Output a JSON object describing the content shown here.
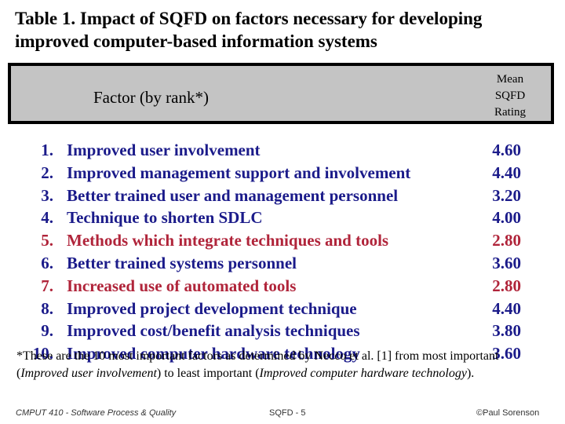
{
  "title": "Table 1.  Impact of SQFD on factors necessary for developing improved computer-based information systems",
  "header": {
    "factor": "Factor (by rank*)",
    "mean_line1": "Mean",
    "mean_line2": "SQFD",
    "mean_line3": "Rating"
  },
  "factors": [
    {
      "rank": "1.",
      "label": "Improved user involvement",
      "rating": "4.60",
      "color": "#1b1b8a"
    },
    {
      "rank": "2.",
      "label": "Improved management support and involvement",
      "rating": "4.40",
      "color": "#1b1b8a"
    },
    {
      "rank": "3.",
      "label": "Better trained user and management personnel",
      "rating": "3.20",
      "color": "#1b1b8a"
    },
    {
      "rank": "4.",
      "label": "Technique to shorten SDLC",
      "rating": "4.00",
      "color": "#1b1b8a"
    },
    {
      "rank": "5.",
      "label": "Methods which integrate techniques and tools",
      "rating": "2.80",
      "color": "#b0243a"
    },
    {
      "rank": "6.",
      "label": "Better trained systems personnel",
      "rating": "3.60",
      "color": "#1b1b8a"
    },
    {
      "rank": "7.",
      "label": "Increased use of automated tools",
      "rating": "2.80",
      "color": "#b0243a"
    },
    {
      "rank": "8.",
      "label": "Improved project development technique",
      "rating": "4.40",
      "color": "#1b1b8a"
    },
    {
      "rank": "9.",
      "label": "Improved cost/benefit analysis techniques",
      "rating": "3.80",
      "color": "#1b1b8a"
    },
    {
      "rank": "10.",
      "label": "Improved computer hardware technology",
      "rating": "3.60",
      "color": "#1b1b8a"
    }
  ],
  "footnote": {
    "part1": "*These are the 10 most important factors as determined by Necco et al. [1] from most important (",
    "italic1": "Improved user involvement",
    "part2": ") to least important (",
    "italic2": "Improved computer hardware technology",
    "part3": ")."
  },
  "footer": {
    "left": "CMPUT 410 - Software Process & Quality",
    "center": "SQFD - 5",
    "right": "©Paul Sorenson"
  }
}
